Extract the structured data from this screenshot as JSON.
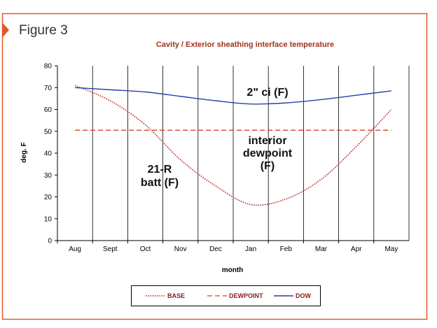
{
  "figure_label": "Figure 3",
  "colors": {
    "frame": "#e0592a",
    "base": "#b03030",
    "dewpoint": "#e03a1e",
    "dow": "#2b3fa8"
  },
  "chart_data": {
    "type": "line",
    "title": "Cavity / Exterior sheathing interface temperature",
    "xlabel": "month",
    "ylabel": "deg. F",
    "ylim": [
      0,
      80
    ],
    "yticks": [
      "0",
      "10",
      "20",
      "30",
      "40",
      "50",
      "60",
      "70",
      "80"
    ],
    "categories": [
      "Aug",
      "Sept",
      "Oct",
      "Nov",
      "Dec",
      "Jan",
      "Feb",
      "Mar",
      "Apr",
      "May"
    ],
    "grid": "vertical",
    "legend_position": "bottom",
    "series": [
      {
        "name": "BASE",
        "style": "dotted",
        "values": [
          71,
          64,
          53,
          37,
          25,
          16.5,
          19,
          28,
          43,
          60
        ]
      },
      {
        "name": "DEWPOINT",
        "style": "dashed",
        "values": [
          50.5,
          50.5,
          50.5,
          50.5,
          50.5,
          50.5,
          50.5,
          50.5,
          50.5,
          50.5
        ]
      },
      {
        "name": "DOW",
        "style": "solid",
        "values": [
          70,
          69,
          68,
          66,
          64,
          62.5,
          63,
          64.5,
          66.5,
          68.5
        ]
      }
    ],
    "annotations": [
      {
        "lines": [
          "2\" ci (F)"
        ]
      },
      {
        "lines": [
          "interior",
          "dewpoint",
          "(F)"
        ]
      },
      {
        "lines": [
          "21-R",
          "batt (F)"
        ]
      }
    ]
  }
}
